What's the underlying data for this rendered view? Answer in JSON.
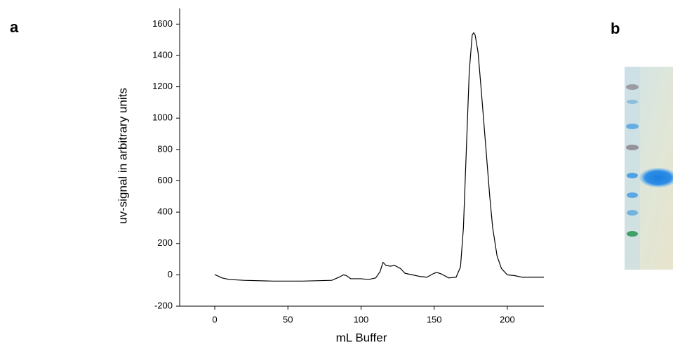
{
  "chart_data": {
    "type": "line",
    "panel_labels": [
      "a",
      "b"
    ],
    "xlabel": "mL Buffer",
    "ylabel": "uv-signal in arbitrary units",
    "color": "#000000",
    "x": [
      0,
      5,
      10,
      20,
      40,
      60,
      80,
      85,
      88,
      90,
      93,
      100,
      105,
      110,
      113,
      115,
      117,
      120,
      123,
      127,
      130,
      135,
      140,
      145,
      150,
      152,
      155,
      160,
      165,
      168,
      170,
      172,
      174,
      176,
      177,
      178,
      180,
      182,
      185,
      188,
      190,
      193,
      196,
      200,
      205,
      210,
      220,
      225
    ],
    "values": [
      2,
      -20,
      -30,
      -35,
      -40,
      -40,
      -35,
      -15,
      0,
      -5,
      -25,
      -25,
      -30,
      -20,
      20,
      80,
      60,
      55,
      60,
      40,
      10,
      0,
      -10,
      -15,
      10,
      15,
      5,
      -20,
      -15,
      50,
      300,
      800,
      1300,
      1530,
      1545,
      1530,
      1420,
      1200,
      850,
      500,
      300,
      120,
      40,
      0,
      -5,
      -15,
      -15,
      -15
    ],
    "xlim": [
      -24,
      225
    ],
    "ylim": [
      -200,
      1700
    ],
    "xticks": [
      0,
      50,
      100,
      150,
      200
    ],
    "yticks": [
      -200,
      0,
      200,
      400,
      600,
      800,
      1000,
      1200,
      1400,
      1600
    ]
  }
}
